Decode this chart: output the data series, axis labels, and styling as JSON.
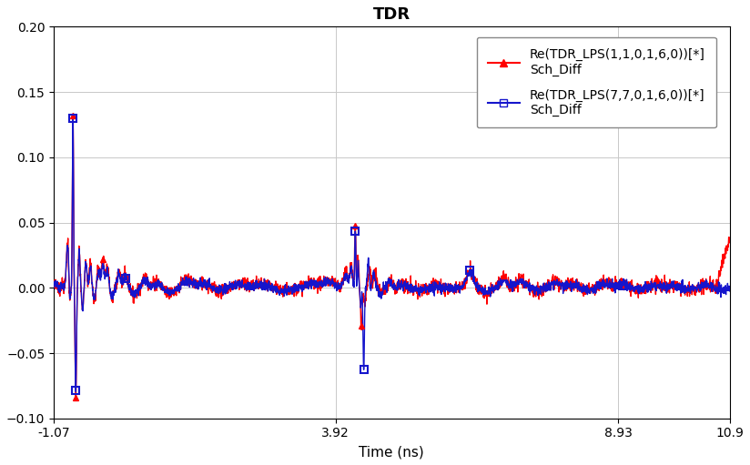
{
  "title": "TDR",
  "xlabel": "Time (ns)",
  "ylabel": "",
  "xlim": [
    -1.07,
    10.9
  ],
  "ylim": [
    -0.1,
    0.2
  ],
  "yticks": [
    -0.1,
    -0.05,
    0.0,
    0.05,
    0.1,
    0.15,
    0.2
  ],
  "xticks": [
    -1.07,
    3.92,
    8.93,
    10.9
  ],
  "xticklabels": [
    "-1.07",
    "3.92",
    "8.93",
    "10.9"
  ],
  "red_label": "Re(TDR_LPS(1,1,0,1,6,0))[*]\nSch_Diff",
  "blue_label": "Re(TDR_LPS(7,7,0,1,6,0))[*]\nSch_Diff",
  "red_color": "#FF0000",
  "blue_color": "#1515CC",
  "background_color": "#FFFFFF",
  "grid_color": "#C8C8C8",
  "title_fontsize": 13,
  "label_fontsize": 11,
  "tick_fontsize": 10,
  "legend_fontsize": 10
}
